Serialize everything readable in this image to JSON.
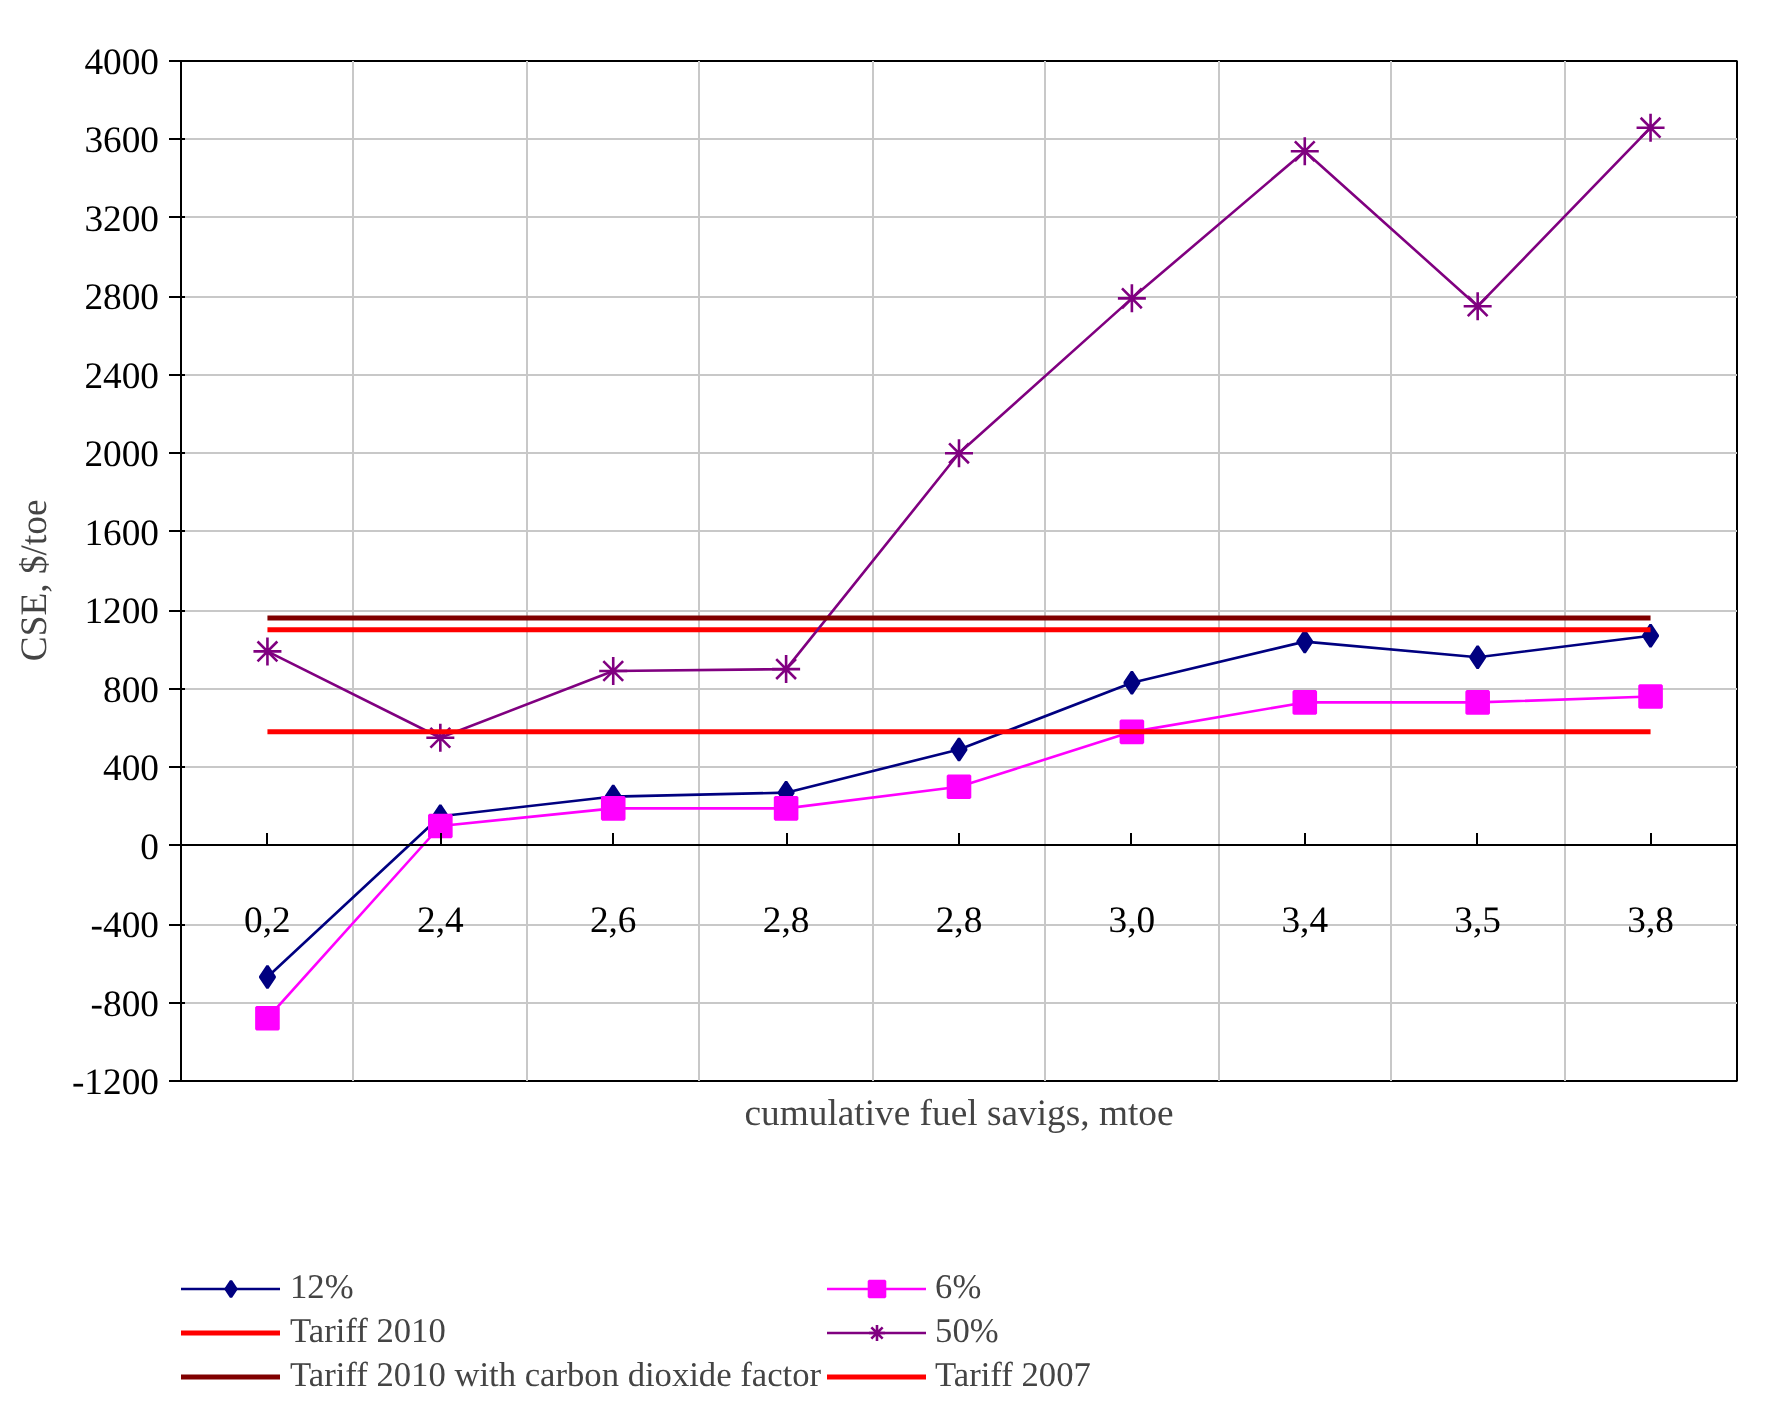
{
  "chart_data": {
    "type": "line",
    "xlabel": "cumulative fuel savigs, mtoe",
    "ylabel": "CSE,   $/toe",
    "categories": [
      "0,2",
      "2,4",
      "2,6",
      "2,8",
      "2,8",
      "3,0",
      "3,4",
      "3,5",
      "3,8"
    ],
    "series": [
      {
        "name": "12%",
        "color": "#000080",
        "marker": "diamond",
        "values": [
          -670,
          150,
          250,
          270,
          490,
          830,
          1040,
          960,
          1070
        ]
      },
      {
        "name": "6%",
        "color": "#ff00ff",
        "marker": "square",
        "values": [
          -880,
          100,
          190,
          190,
          300,
          580,
          730,
          730,
          760
        ]
      },
      {
        "name": "Tariff 2010",
        "color": "#ff0000",
        "marker": "none",
        "values": [
          1100,
          1100,
          1100,
          1100,
          1100,
          1100,
          1100,
          1100,
          1100
        ]
      },
      {
        "name": "50%",
        "color": "#800080",
        "marker": "cross",
        "values": [
          990,
          550,
          890,
          900,
          2000,
          2790,
          3540,
          2750,
          3660
        ]
      },
      {
        "name": "Tariff 2010 with carbon dioxide factor",
        "color": "#800000",
        "marker": "none",
        "values": [
          1160,
          1160,
          1160,
          1160,
          1160,
          1160,
          1160,
          1160,
          1160
        ]
      },
      {
        "name": "Tariff 2007",
        "color": "#ff0000",
        "marker": "none",
        "values": [
          580,
          580,
          580,
          580,
          580,
          580,
          580,
          580,
          580
        ]
      }
    ],
    "ylim": [
      -1200,
      4000
    ],
    "yticks": [
      -1200,
      -800,
      -400,
      0,
      400,
      800,
      1200,
      1600,
      2000,
      2400,
      2800,
      3200,
      3600,
      4000
    ],
    "grid": true,
    "legend": "bottom",
    "line_style": "solid"
  }
}
